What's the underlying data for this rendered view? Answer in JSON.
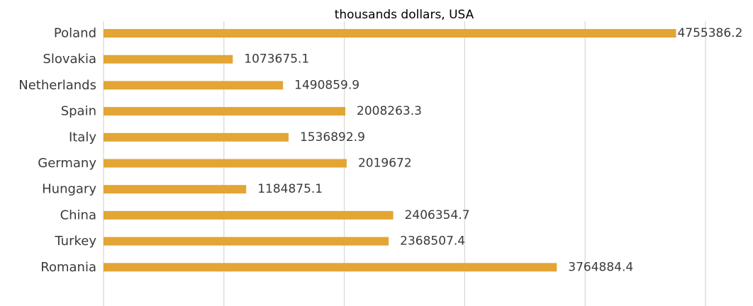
{
  "chart_data": {
    "type": "bar",
    "orientation": "horizontal",
    "title": "thousands dollars, USA",
    "categories": [
      "Poland",
      "Slovakia",
      "Netherlands",
      "Spain",
      "Italy",
      "Germany",
      "Hungary",
      "China",
      "Turkey",
      "Romania"
    ],
    "values": [
      4755386.2,
      1073675.1,
      1490859.9,
      2008263.3,
      1536892.9,
      2019672,
      1184875.1,
      2406354.7,
      2368507.4,
      3764884.4
    ],
    "value_labels": [
      "4755386.2",
      "1073675.1",
      "1490859.9",
      "2008263.3",
      "1536892.9",
      "2019672",
      "1184875.1",
      "2406354.7",
      "2368507.4",
      "3764884.4"
    ],
    "xlim": [
      0,
      5000000
    ],
    "x_gridline_step": 1000000,
    "grid": true,
    "legend": "none",
    "bar_color": "#e3a534"
  }
}
